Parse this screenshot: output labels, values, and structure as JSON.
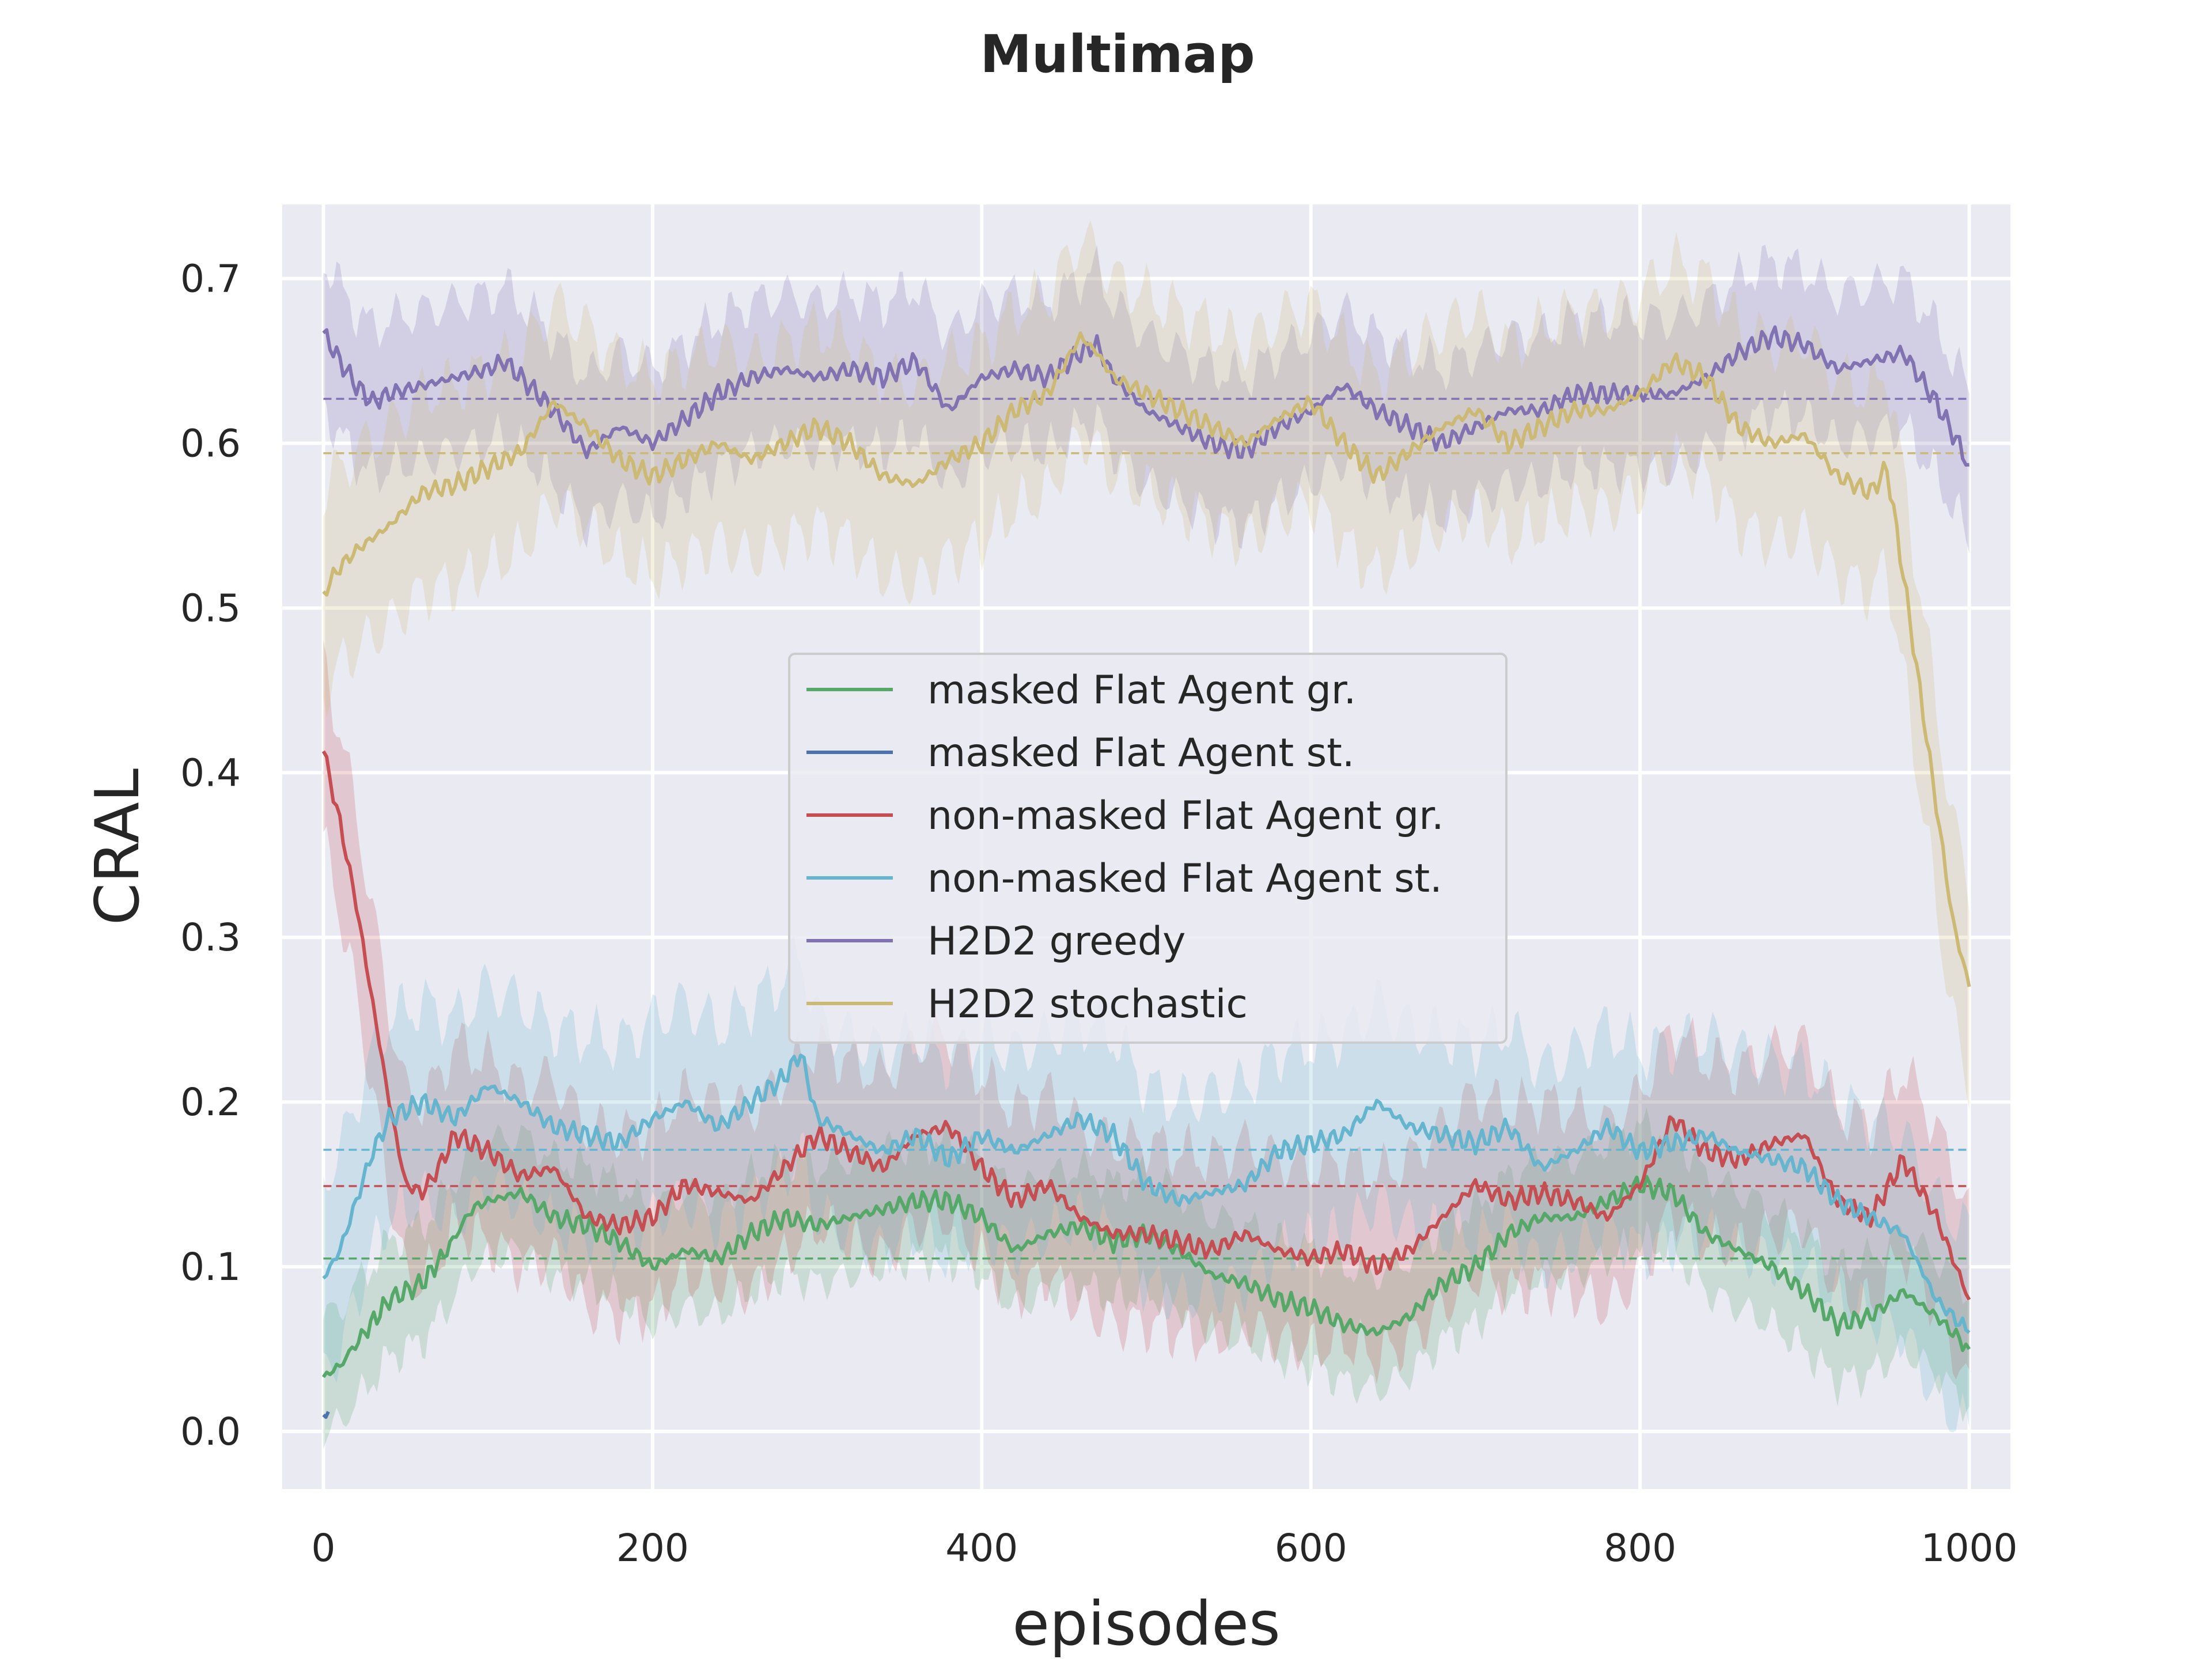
{
  "chart_data": {
    "type": "line",
    "title": "Multimap",
    "xlabel": "episodes",
    "ylabel": "CRAL",
    "xlim": [
      -25,
      1025
    ],
    "ylim": [
      -0.035,
      0.745
    ],
    "xticks": [
      0,
      200,
      400,
      600,
      800,
      1000
    ],
    "yticks": [
      0.0,
      0.1,
      0.2,
      0.3,
      0.4,
      0.5,
      0.6,
      0.7
    ],
    "xtick_labels": [
      "0",
      "200",
      "400",
      "600",
      "800",
      "1000"
    ],
    "ytick_labels": [
      "0.0",
      "0.1",
      "0.2",
      "0.3",
      "0.4",
      "0.5",
      "0.6",
      "0.7"
    ],
    "grid": true,
    "legend_position": "center",
    "background_color": "#eaeaf2",
    "series": [
      {
        "name": "masked Flat Agent gr.",
        "color": "#55a868",
        "mean": 0.105,
        "band": 0.035,
        "x": [
          0,
          10,
          25,
          40,
          60,
          75,
          90,
          100,
          120,
          140,
          160,
          180,
          200,
          220,
          240,
          260,
          280,
          300,
          320,
          340,
          360,
          380,
          400,
          420,
          440,
          460,
          480,
          500,
          520,
          540,
          560,
          580,
          600,
          620,
          640,
          660,
          680,
          700,
          720,
          740,
          760,
          780,
          800,
          820,
          840,
          860,
          880,
          900,
          920,
          940,
          960,
          980,
          1000
        ],
        "y": [
          0.033,
          0.04,
          0.06,
          0.08,
          0.09,
          0.11,
          0.135,
          0.14,
          0.145,
          0.13,
          0.125,
          0.115,
          0.1,
          0.11,
          0.105,
          0.12,
          0.13,
          0.125,
          0.13,
          0.135,
          0.14,
          0.14,
          0.13,
          0.11,
          0.12,
          0.125,
          0.115,
          0.12,
          0.11,
          0.095,
          0.09,
          0.08,
          0.075,
          0.065,
          0.06,
          0.07,
          0.09,
          0.1,
          0.12,
          0.13,
          0.13,
          0.14,
          0.15,
          0.145,
          0.12,
          0.11,
          0.1,
          0.085,
          0.065,
          0.07,
          0.085,
          0.07,
          0.05
        ]
      },
      {
        "name": "masked Flat Agent st.",
        "color": "#4c72b0",
        "band": 0,
        "x": [
          0,
          3
        ],
        "y": [
          0.01,
          0.012
        ]
      },
      {
        "name": "non-masked Flat Agent gr.",
        "color": "#c44e52",
        "mean": 0.149,
        "band": 0.055,
        "x": [
          0,
          10,
          20,
          30,
          40,
          50,
          60,
          70,
          80,
          100,
          120,
          140,
          160,
          180,
          200,
          220,
          240,
          260,
          280,
          300,
          320,
          340,
          360,
          380,
          400,
          420,
          440,
          460,
          480,
          500,
          520,
          540,
          560,
          580,
          600,
          620,
          640,
          660,
          680,
          700,
          720,
          740,
          760,
          780,
          800,
          820,
          840,
          860,
          880,
          900,
          920,
          940,
          960,
          980,
          1000
        ],
        "y": [
          0.413,
          0.37,
          0.32,
          0.26,
          0.2,
          0.15,
          0.145,
          0.16,
          0.18,
          0.17,
          0.155,
          0.16,
          0.13,
          0.125,
          0.13,
          0.15,
          0.145,
          0.14,
          0.16,
          0.18,
          0.17,
          0.16,
          0.18,
          0.185,
          0.16,
          0.14,
          0.15,
          0.13,
          0.12,
          0.12,
          0.115,
          0.11,
          0.12,
          0.11,
          0.105,
          0.11,
          0.1,
          0.11,
          0.13,
          0.15,
          0.14,
          0.145,
          0.14,
          0.13,
          0.15,
          0.19,
          0.17,
          0.165,
          0.175,
          0.18,
          0.14,
          0.13,
          0.165,
          0.13,
          0.08
        ]
      },
      {
        "name": "non-masked Flat Agent st.",
        "color": "#64b5cd",
        "mean": 0.171,
        "band": 0.06,
        "x": [
          0,
          10,
          20,
          30,
          40,
          60,
          80,
          100,
          120,
          140,
          160,
          180,
          200,
          220,
          240,
          260,
          280,
          290,
          300,
          320,
          340,
          360,
          380,
          400,
          420,
          440,
          460,
          480,
          500,
          520,
          540,
          560,
          580,
          600,
          620,
          640,
          660,
          680,
          700,
          720,
          740,
          760,
          780,
          800,
          820,
          840,
          860,
          880,
          900,
          920,
          940,
          960,
          980,
          1000
        ],
        "y": [
          0.093,
          0.11,
          0.14,
          0.17,
          0.19,
          0.2,
          0.19,
          0.21,
          0.2,
          0.185,
          0.18,
          0.175,
          0.19,
          0.2,
          0.185,
          0.2,
          0.215,
          0.23,
          0.19,
          0.18,
          0.17,
          0.18,
          0.165,
          0.18,
          0.17,
          0.18,
          0.19,
          0.18,
          0.15,
          0.14,
          0.145,
          0.15,
          0.17,
          0.175,
          0.18,
          0.2,
          0.185,
          0.18,
          0.175,
          0.185,
          0.16,
          0.17,
          0.185,
          0.17,
          0.175,
          0.18,
          0.17,
          0.165,
          0.16,
          0.14,
          0.13,
          0.12,
          0.08,
          0.06
        ]
      },
      {
        "name": "H2D2 greedy",
        "color": "#8172b2",
        "mean": 0.627,
        "band": 0.045,
        "x": [
          0,
          10,
          20,
          30,
          40,
          60,
          80,
          100,
          110,
          120,
          140,
          160,
          180,
          200,
          220,
          240,
          260,
          280,
          300,
          320,
          340,
          360,
          380,
          400,
          420,
          440,
          460,
          470,
          480,
          500,
          520,
          540,
          560,
          580,
          600,
          620,
          640,
          660,
          680,
          700,
          720,
          740,
          760,
          780,
          800,
          820,
          840,
          860,
          880,
          900,
          920,
          940,
          960,
          980,
          1000
        ],
        "y": [
          0.667,
          0.65,
          0.635,
          0.625,
          0.63,
          0.635,
          0.64,
          0.645,
          0.65,
          0.64,
          0.62,
          0.595,
          0.61,
          0.6,
          0.615,
          0.63,
          0.64,
          0.645,
          0.64,
          0.645,
          0.64,
          0.65,
          0.62,
          0.64,
          0.645,
          0.64,
          0.655,
          0.66,
          0.64,
          0.62,
          0.61,
          0.6,
          0.595,
          0.61,
          0.62,
          0.635,
          0.62,
          0.61,
          0.6,
          0.61,
          0.62,
          0.62,
          0.63,
          0.63,
          0.63,
          0.63,
          0.64,
          0.655,
          0.665,
          0.66,
          0.645,
          0.65,
          0.655,
          0.625,
          0.587
        ]
      },
      {
        "name": "H2D2 stochastic",
        "color": "#ccb974",
        "mean": 0.594,
        "band": 0.06,
        "x": [
          0,
          10,
          20,
          40,
          60,
          80,
          100,
          120,
          130,
          140,
          160,
          180,
          200,
          220,
          240,
          260,
          280,
          300,
          320,
          340,
          360,
          380,
          400,
          420,
          440,
          460,
          470,
          480,
          500,
          520,
          540,
          560,
          580,
          600,
          620,
          640,
          660,
          680,
          700,
          720,
          740,
          760,
          780,
          800,
          820,
          840,
          860,
          880,
          900,
          920,
          940,
          950,
          960,
          970,
          980,
          990,
          1000
        ],
        "y": [
          0.51,
          0.525,
          0.535,
          0.55,
          0.57,
          0.575,
          0.585,
          0.595,
          0.61,
          0.625,
          0.61,
          0.59,
          0.58,
          0.59,
          0.6,
          0.59,
          0.6,
          0.61,
          0.6,
          0.58,
          0.575,
          0.59,
          0.6,
          0.62,
          0.63,
          0.665,
          0.655,
          0.64,
          0.63,
          0.62,
          0.61,
          0.6,
          0.615,
          0.625,
          0.6,
          0.58,
          0.595,
          0.61,
          0.62,
          0.6,
          0.61,
          0.62,
          0.62,
          0.63,
          0.65,
          0.64,
          0.61,
          0.6,
          0.605,
          0.58,
          0.57,
          0.585,
          0.52,
          0.45,
          0.38,
          0.31,
          0.27
        ]
      }
    ]
  }
}
